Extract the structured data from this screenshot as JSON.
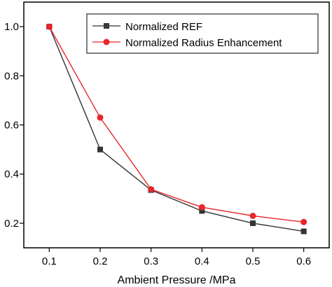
{
  "chart_data": {
    "type": "line",
    "title": "",
    "xlabel": "Ambient Pressure /MPa",
    "ylabel": "",
    "x": [
      0.1,
      0.2,
      0.3,
      0.4,
      0.5,
      0.6
    ],
    "xlim": [
      0.05,
      0.65
    ],
    "ylim": [
      0.1,
      1.1
    ],
    "xticks": [
      "0.1",
      "0.2",
      "0.3",
      "0.4",
      "0.5",
      "0.6"
    ],
    "yticks": [
      "0.2",
      "0.4",
      "0.6",
      "0.8",
      "1.0"
    ],
    "grid": false,
    "legend_position": "top-right",
    "series": [
      {
        "name": "Normalized REF",
        "marker": "square",
        "color": "#333333",
        "values": [
          1.0,
          0.5,
          0.335,
          0.25,
          0.2,
          0.167
        ]
      },
      {
        "name": "Normalized Radius Enhancement",
        "marker": "circle",
        "color": "#e8262a",
        "values": [
          1.0,
          0.63,
          0.338,
          0.265,
          0.23,
          0.205
        ]
      }
    ]
  }
}
